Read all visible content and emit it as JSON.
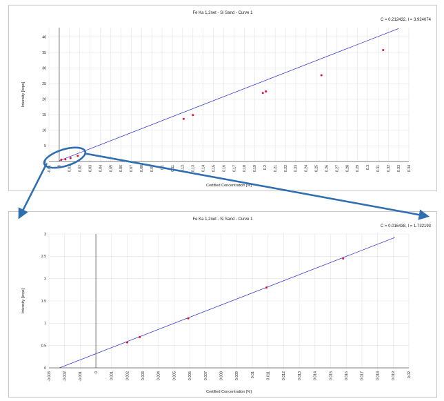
{
  "chart_data": [
    {
      "type": "scatter",
      "title": "Fe Ka 1,2net - Si Sand - Curve 1",
      "readout": "C = 0.212432, I = 3.924074",
      "xlabel": "Certified Concentration [%]",
      "ylabel": "Intensity [kcps]",
      "xlim": [
        -0.01,
        0.34
      ],
      "ylim": [
        0,
        43
      ],
      "xticks": [
        "-0.01",
        "0",
        "0.01",
        "0.02",
        "0.03",
        "0.04",
        "0.05",
        "0.06",
        "0.07",
        "0.08",
        "0.09",
        "0.1",
        "0.11",
        "0.12",
        "0.13",
        "0.14",
        "0.15",
        "0.16",
        "0.17",
        "0.18",
        "0.19",
        "0.2",
        "0.21",
        "0.22",
        "0.23",
        "0.24",
        "0.25",
        "0.26",
        "0.27",
        "0.28",
        "0.29",
        "0.3",
        "0.31",
        "0.32",
        "0.33",
        "0.34"
      ],
      "yticks": [
        "0",
        "5",
        "10",
        "15",
        "20",
        "25",
        "30",
        "35",
        "40"
      ],
      "grid": true,
      "line": {
        "x": [
          0,
          0.33
        ],
        "y": [
          0.25,
          42.7
        ],
        "color": "#3a3ad8"
      },
      "series": [
        {
          "color": "#e0102f",
          "x": [
            0.002,
            0.006,
            0.011,
            0.018,
            0.121,
            0.13,
            0.198,
            0.201,
            0.255,
            0.315
          ],
          "y": [
            0.56,
            0.68,
            1.1,
            1.8,
            13.7,
            14.9,
            22.0,
            22.5,
            27.7,
            35.8
          ]
        }
      ],
      "vline_x": 0
    },
    {
      "type": "scatter",
      "title": "Fe Ka 1,2net - Si Sand - Curve 1",
      "readout": "C = 0.016438, I = 1.732193",
      "xlabel": "Certified Concentration [%]",
      "ylabel": "Intensity [kcps]",
      "xlim": [
        -0.003,
        0.02
      ],
      "ylim": [
        0,
        3.0
      ],
      "xticks": [
        "-0.003",
        "-0.002",
        "-0.001",
        "0",
        "0.001",
        "0.002",
        "0.003",
        "0.004",
        "0.005",
        "0.006",
        "0.007",
        "0.008",
        "0.009",
        "0.01",
        "0.011",
        "0.012",
        "0.013",
        "0.014",
        "0.015",
        "0.016",
        "0.017",
        "0.018",
        "0.019",
        "0.02"
      ],
      "yticks": [
        "0",
        "0.5",
        "1",
        "1.5",
        "2",
        "2.5",
        "3"
      ],
      "grid": true,
      "line": {
        "x": [
          -0.00233,
          0.0191
        ],
        "y": [
          0,
          2.92
        ],
        "color": "#3a3ad8"
      },
      "series": [
        {
          "color": "#e0102f",
          "x": [
            0.002,
            0.0028,
            0.0059,
            0.0109,
            0.0158
          ],
          "y": [
            0.57,
            0.69,
            1.11,
            1.8,
            2.45
          ]
        }
      ],
      "vline_x": 0
    }
  ],
  "callout_color": "#2f6fb0"
}
